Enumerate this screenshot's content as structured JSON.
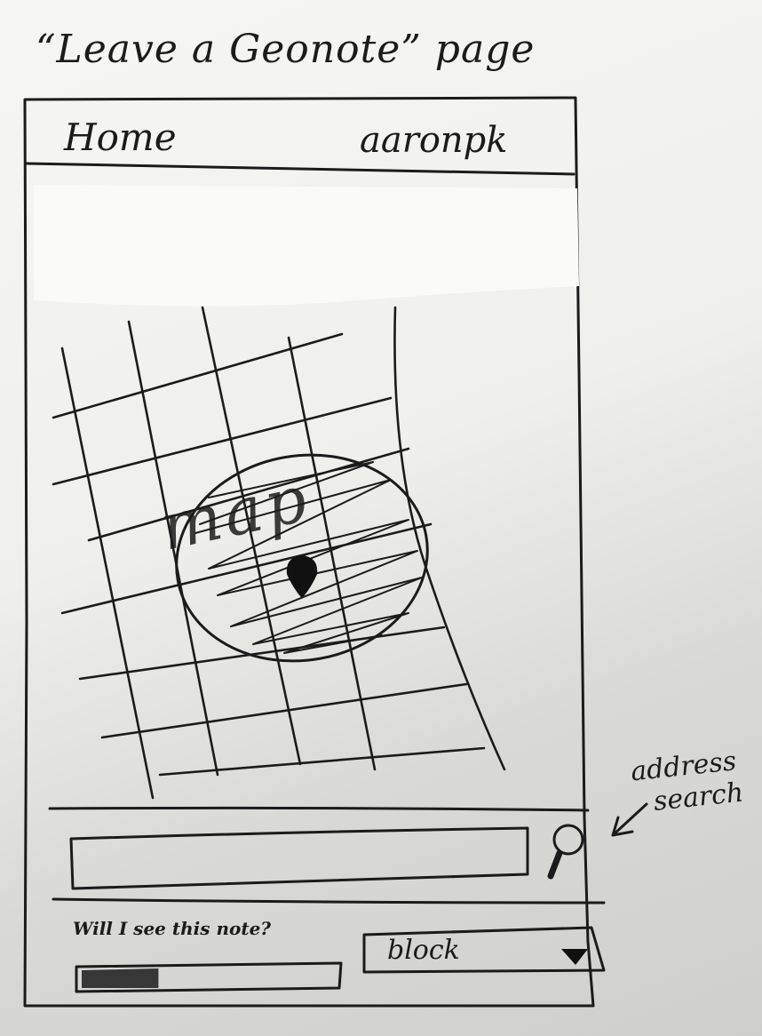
{
  "caption": "“Leave a Geonote” page",
  "header": {
    "home_label": "Home",
    "user_label": "aaronpk"
  },
  "map": {
    "sketch_label": "map",
    "marker_icon": "map-pin-icon"
  },
  "search": {
    "placeholder": "",
    "button_icon": "magnifier-icon"
  },
  "visibility": {
    "question": "Will I see this note?",
    "slider_fraction": 0.3,
    "select_value": "block",
    "select_icon": "triangle-down-icon"
  },
  "annotation": {
    "line1": "address",
    "line2": "search"
  }
}
